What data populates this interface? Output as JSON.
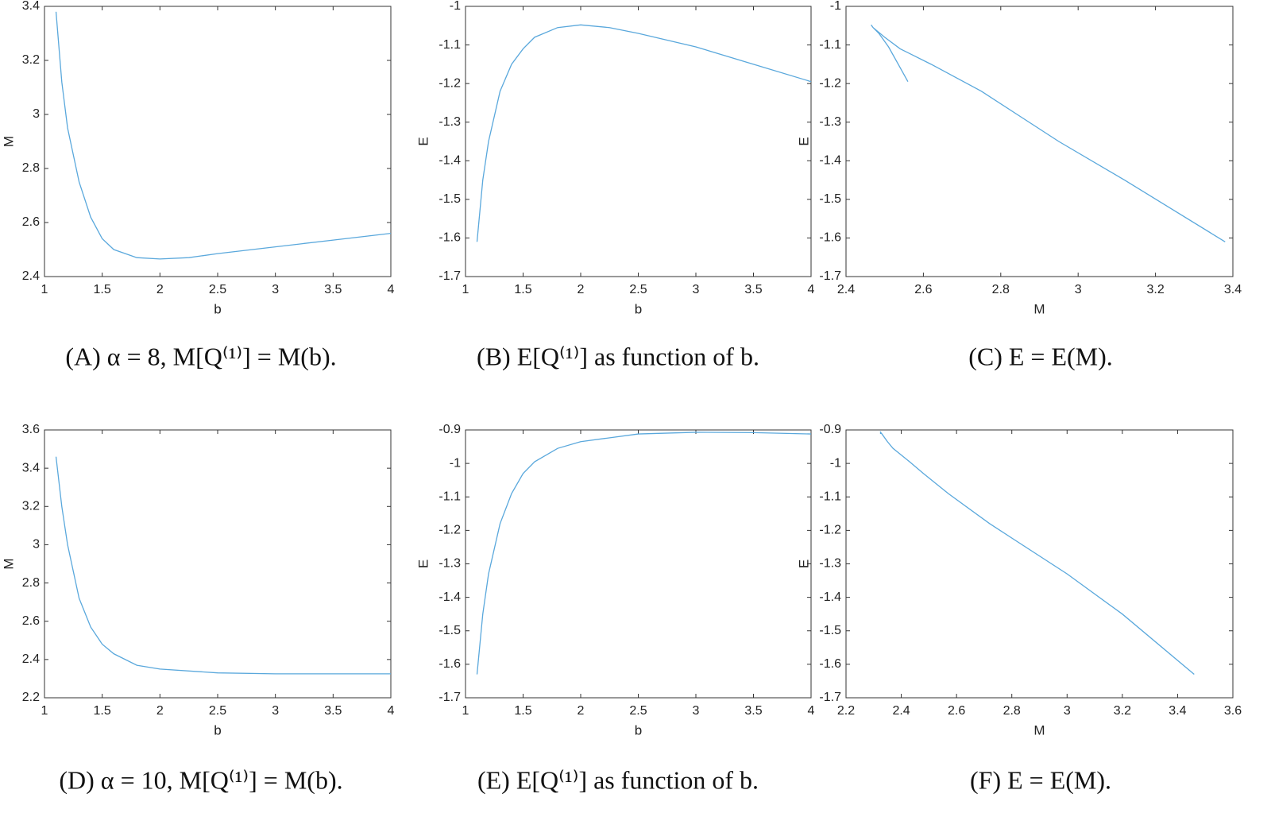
{
  "chart_data": [
    {
      "type": "line",
      "caption": "(A) α = 8, M[Q⁽¹⁾] = M(b).",
      "xlabel": "b",
      "ylabel": "M",
      "color": "#5aa8dc",
      "x": [
        1.1,
        1.15,
        1.2,
        1.3,
        1.4,
        1.5,
        1.6,
        1.8,
        2.0,
        2.25,
        2.5,
        3.0,
        3.5,
        4.0
      ],
      "values": [
        3.38,
        3.12,
        2.95,
        2.75,
        2.62,
        2.54,
        2.5,
        2.47,
        2.465,
        2.47,
        2.485,
        2.51,
        2.535,
        2.56
      ],
      "xlim": [
        1,
        4
      ],
      "xticks": [
        1,
        1.5,
        2,
        2.5,
        3,
        3.5,
        4
      ],
      "ylim": [
        2.4,
        3.4
      ],
      "yticks": [
        2.4,
        2.6,
        2.8,
        3,
        3.2,
        3.4
      ]
    },
    {
      "type": "line",
      "caption": "(B) E[Q⁽¹⁾] as function of b.",
      "xlabel": "b",
      "ylabel": "E",
      "color": "#5aa8dc",
      "x": [
        1.1,
        1.15,
        1.2,
        1.3,
        1.4,
        1.5,
        1.6,
        1.8,
        2.0,
        2.25,
        2.5,
        3.0,
        3.5,
        4.0
      ],
      "values": [
        -1.61,
        -1.45,
        -1.35,
        -1.22,
        -1.15,
        -1.11,
        -1.08,
        -1.055,
        -1.048,
        -1.055,
        -1.07,
        -1.105,
        -1.15,
        -1.195
      ],
      "xlim": [
        1,
        4
      ],
      "xticks": [
        1,
        1.5,
        2,
        2.5,
        3,
        3.5,
        4
      ],
      "ylim": [
        -1.7,
        -1
      ],
      "yticks": [
        -1.7,
        -1.6,
        -1.5,
        -1.4,
        -1.3,
        -1.2,
        -1.1,
        -1
      ]
    },
    {
      "type": "line",
      "caption": "(C) E = E(M).",
      "xlabel": "M",
      "ylabel": "E",
      "color": "#5aa8dc",
      "x": [
        3.38,
        3.12,
        2.95,
        2.75,
        2.62,
        2.54,
        2.5,
        2.47,
        2.465,
        2.47,
        2.485,
        2.51,
        2.535,
        2.56
      ],
      "values": [
        -1.61,
        -1.45,
        -1.35,
        -1.22,
        -1.15,
        -1.11,
        -1.08,
        -1.055,
        -1.048,
        -1.055,
        -1.07,
        -1.105,
        -1.15,
        -1.195
      ],
      "xlim": [
        2.4,
        3.4
      ],
      "xticks": [
        2.4,
        2.6,
        2.8,
        3,
        3.2,
        3.4
      ],
      "ylim": [
        -1.7,
        -1
      ],
      "yticks": [
        -1.7,
        -1.6,
        -1.5,
        -1.4,
        -1.3,
        -1.2,
        -1.1,
        -1
      ]
    },
    {
      "type": "line",
      "caption": "(D) α = 10, M[Q⁽¹⁾] = M(b).",
      "xlabel": "b",
      "ylabel": "M",
      "color": "#5aa8dc",
      "x": [
        1.1,
        1.15,
        1.2,
        1.3,
        1.4,
        1.5,
        1.6,
        1.8,
        2.0,
        2.5,
        3.0,
        3.5,
        4.0
      ],
      "values": [
        3.46,
        3.2,
        3.0,
        2.72,
        2.57,
        2.48,
        2.43,
        2.37,
        2.35,
        2.33,
        2.325,
        2.325,
        2.325
      ],
      "xlim": [
        1,
        4
      ],
      "xticks": [
        1,
        1.5,
        2,
        2.5,
        3,
        3.5,
        4
      ],
      "ylim": [
        2.2,
        3.6
      ],
      "yticks": [
        2.2,
        2.4,
        2.6,
        2.8,
        3,
        3.2,
        3.4,
        3.6
      ]
    },
    {
      "type": "line",
      "caption": "(E) E[Q⁽¹⁾] as function of b.",
      "xlabel": "b",
      "ylabel": "E",
      "color": "#5aa8dc",
      "x": [
        1.1,
        1.15,
        1.2,
        1.3,
        1.4,
        1.5,
        1.6,
        1.8,
        2.0,
        2.5,
        3.0,
        3.5,
        4.0
      ],
      "values": [
        -1.63,
        -1.45,
        -1.33,
        -1.18,
        -1.09,
        -1.03,
        -0.995,
        -0.955,
        -0.935,
        -0.912,
        -0.907,
        -0.908,
        -0.912
      ],
      "xlim": [
        1,
        4
      ],
      "xticks": [
        1,
        1.5,
        2,
        2.5,
        3,
        3.5,
        4
      ],
      "ylim": [
        -1.7,
        -0.9
      ],
      "yticks": [
        -1.7,
        -1.6,
        -1.5,
        -1.4,
        -1.3,
        -1.2,
        -1.1,
        -1,
        -0.9
      ]
    },
    {
      "type": "line",
      "caption": "(F) E = E(M).",
      "xlabel": "M",
      "ylabel": "E",
      "color": "#5aa8dc",
      "x": [
        3.46,
        3.2,
        3.0,
        2.72,
        2.57,
        2.48,
        2.43,
        2.37,
        2.35,
        2.33,
        2.325,
        2.325,
        2.325
      ],
      "values": [
        -1.63,
        -1.45,
        -1.33,
        -1.18,
        -1.09,
        -1.03,
        -0.995,
        -0.955,
        -0.935,
        -0.912,
        -0.907,
        -0.908,
        -0.912
      ],
      "xlim": [
        2.2,
        3.6
      ],
      "xticks": [
        2.2,
        2.4,
        2.6,
        2.8,
        3,
        3.2,
        3.4,
        3.6
      ],
      "ylim": [
        -1.7,
        -0.9
      ],
      "yticks": [
        -1.7,
        -1.6,
        -1.5,
        -1.4,
        -1.3,
        -1.2,
        -1.1,
        -1,
        -0.9
      ]
    }
  ]
}
